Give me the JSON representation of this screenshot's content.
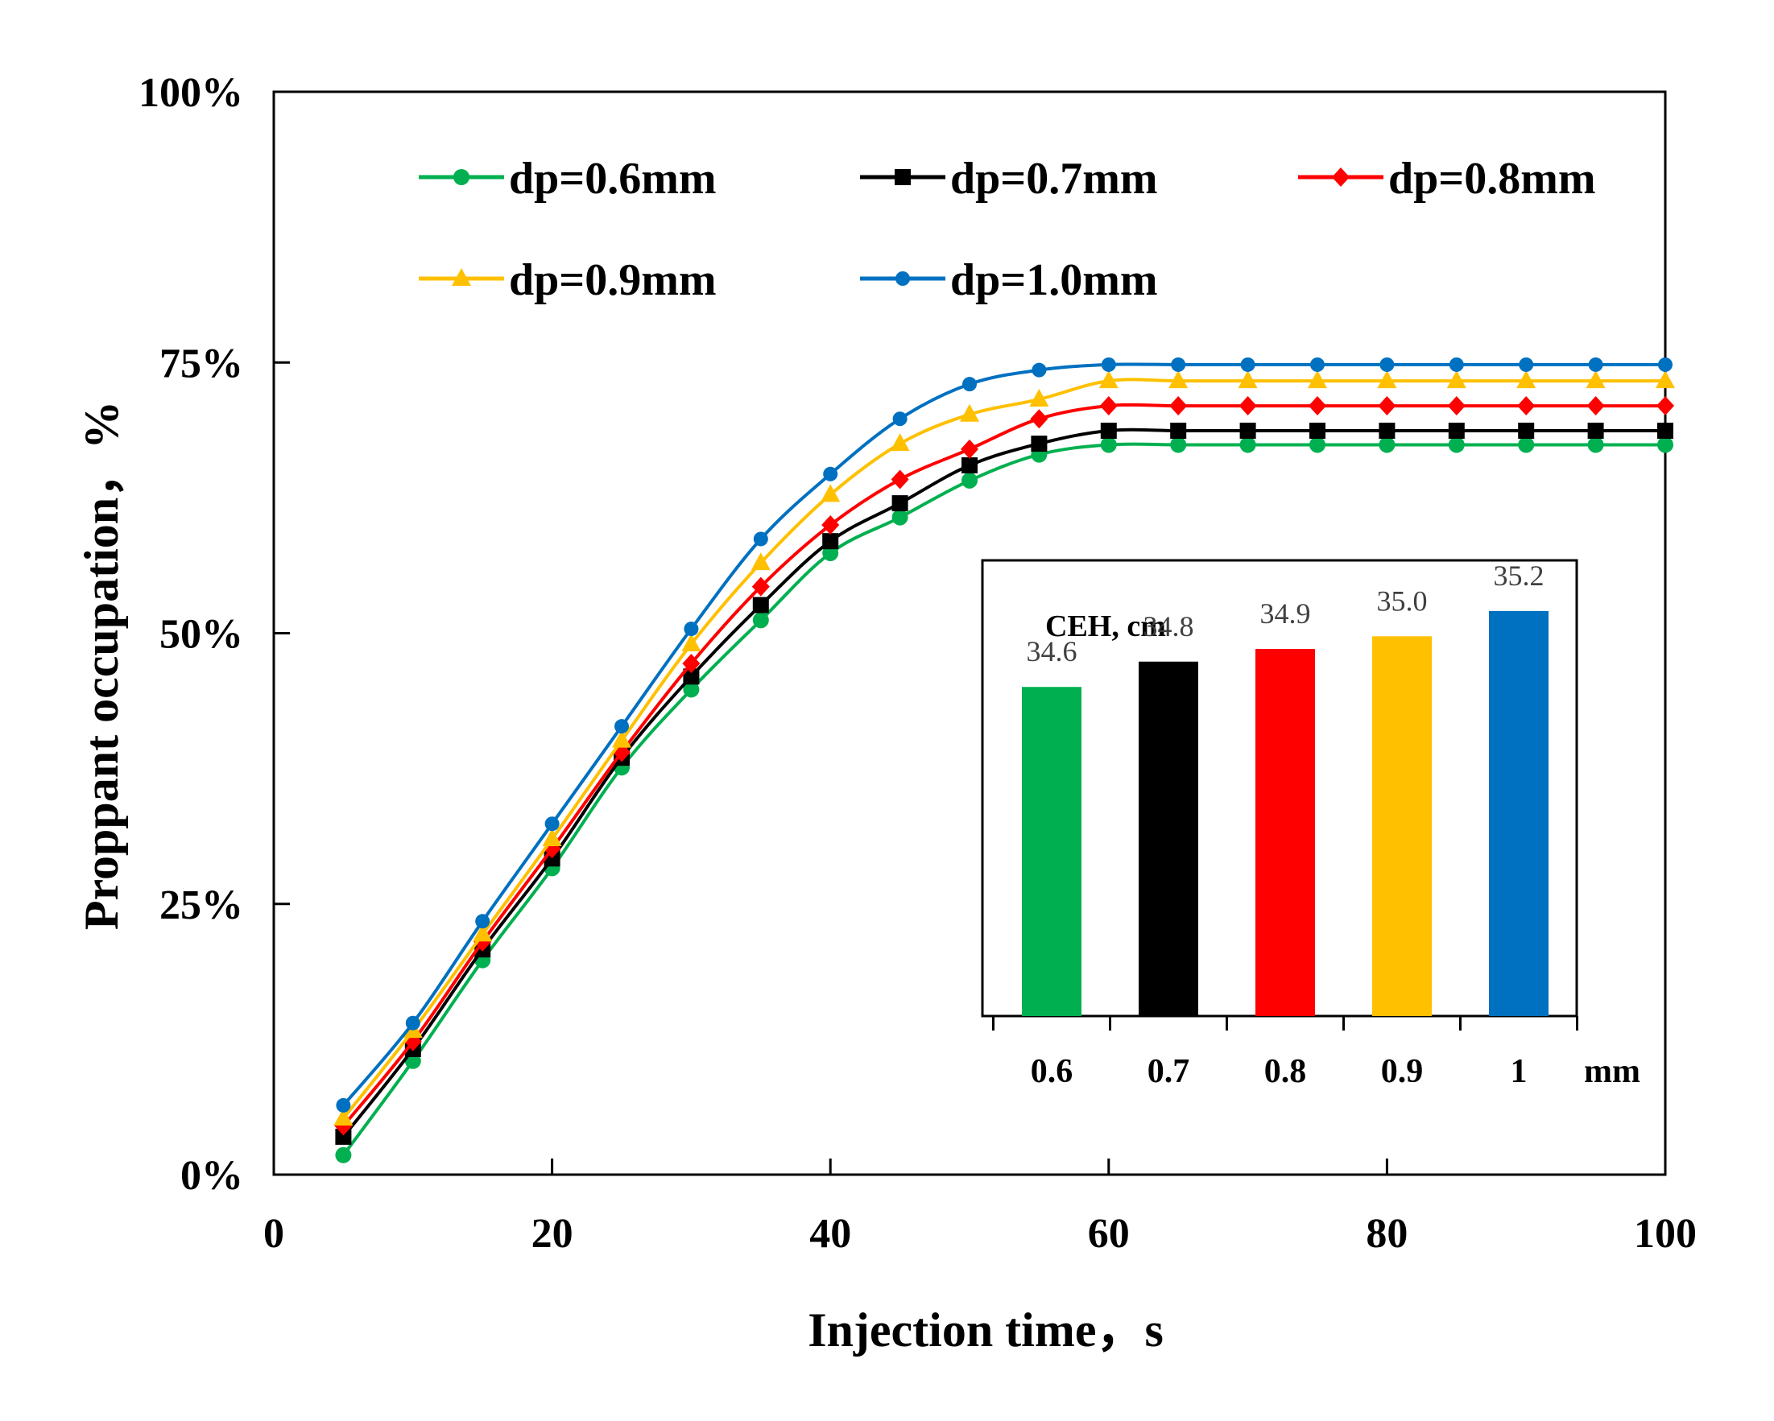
{
  "chart_data": [
    {
      "type": "line",
      "title": "",
      "xlabel": "Injection time，s",
      "ylabel": "Proppant occupation，%",
      "xlim": [
        0,
        100
      ],
      "ylim": [
        0,
        100
      ],
      "xticks": [
        "0",
        "20",
        "40",
        "60",
        "80",
        "100"
      ],
      "yticks": [
        "0%",
        "25%",
        "50%",
        "75%",
        "100%"
      ],
      "legend_position": "top",
      "x": [
        5,
        10,
        15,
        20,
        25,
        30,
        35,
        40,
        45,
        50,
        55,
        60,
        65,
        70,
        75,
        80,
        85,
        90,
        95,
        100
      ],
      "series": [
        {
          "name": "dp=0.6mm",
          "color": "#00B050",
          "marker": "circle",
          "values": [
            1.8,
            10.5,
            19.8,
            28.3,
            37.6,
            44.8,
            51.2,
            57.4,
            60.7,
            64.1,
            66.5,
            67.4,
            67.4,
            67.4,
            67.4,
            67.4,
            67.4,
            67.4,
            67.4,
            67.4
          ]
        },
        {
          "name": "dp=0.7mm",
          "color": "#000000",
          "marker": "square",
          "values": [
            3.5,
            11.6,
            20.8,
            29.2,
            38.5,
            46.0,
            52.6,
            58.5,
            62.0,
            65.5,
            67.5,
            68.7,
            68.7,
            68.7,
            68.7,
            68.7,
            68.7,
            68.7,
            68.7,
            68.7
          ]
        },
        {
          "name": "dp=0.8mm",
          "color": "#FF0000",
          "marker": "diamond",
          "values": [
            4.5,
            12.3,
            21.5,
            30.1,
            39.0,
            47.2,
            54.3,
            60.0,
            64.2,
            67.0,
            69.8,
            71.0,
            71.0,
            71.0,
            71.0,
            71.0,
            71.0,
            71.0,
            71.0,
            71.0
          ]
        },
        {
          "name": "dp=0.9mm",
          "color": "#FFC000",
          "marker": "triangle",
          "values": [
            5.2,
            13.3,
            22.2,
            31.0,
            40.1,
            49.0,
            56.5,
            62.8,
            67.5,
            70.2,
            71.6,
            73.3,
            73.3,
            73.3,
            73.3,
            73.3,
            73.3,
            73.3,
            73.3,
            73.3
          ]
        },
        {
          "name": "dp=1.0mm",
          "color": "#0070C0",
          "marker": "small-circle",
          "values": [
            6.4,
            14.0,
            23.4,
            32.4,
            41.4,
            50.4,
            58.7,
            64.7,
            69.8,
            73.0,
            74.3,
            74.8,
            74.8,
            74.8,
            74.8,
            74.8,
            74.8,
            74.8,
            74.8,
            74.8
          ]
        }
      ]
    },
    {
      "type": "bar",
      "title": "CEH, cm",
      "categories": [
        "0.6",
        "0.7",
        "0.8",
        "0.9",
        "1"
      ],
      "xunit": "mm",
      "values": [
        34.6,
        34.8,
        34.9,
        35.0,
        35.2
      ],
      "value_labels": [
        "34.6",
        "34.8",
        "34.9",
        "35.0",
        "35.2"
      ],
      "colors": [
        "#00B050",
        "#000000",
        "#FF0000",
        "#FFC000",
        "#0070C0"
      ],
      "ylim": [
        32.0,
        35.6
      ]
    }
  ]
}
